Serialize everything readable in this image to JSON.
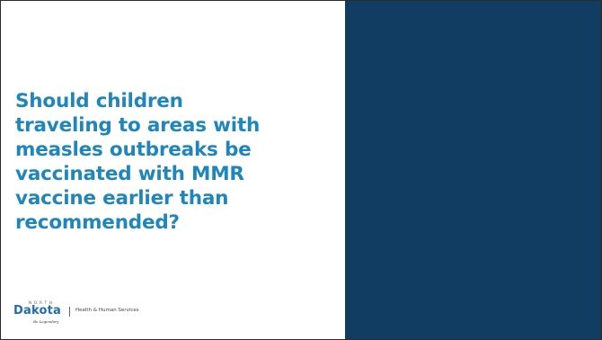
{
  "slide": {
    "question_lines": [
      "Should children",
      "traveling to areas with",
      "measles outbreaks be",
      "vaccinated with MMR",
      "vaccine earlier than",
      "recommended?"
    ]
  },
  "logo": {
    "north": "NORTH",
    "dakota": "Dakota",
    "tagline": "Be Legendary.",
    "department": "Health & Human Services"
  },
  "colors": {
    "right_panel": "#123d63",
    "title": "#1f86bc"
  }
}
